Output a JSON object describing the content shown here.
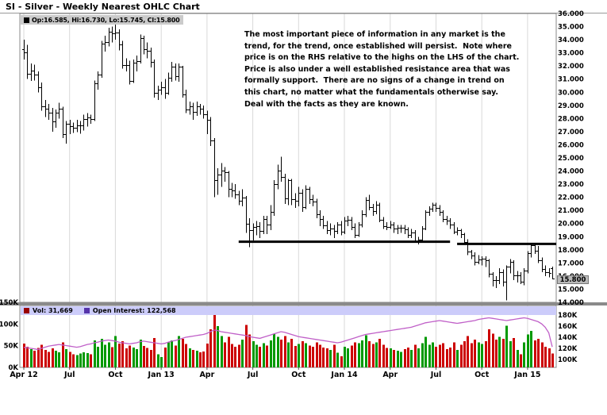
{
  "page": {
    "title": "SI - Silver - Weekly Nearest OHLC Chart"
  },
  "legend": {
    "ohlc": "Op:16.585, Hi:16.730, Lo:15.745, Cl:15.800",
    "volume": "Vol: 31,669",
    "open_interest": "Open Interest: 122,568"
  },
  "annotation": {
    "text": "The most important piece of information in any market is the\ntrend, for the trend, once established will persist.  Note where\nprice is on the RHS relative to the highs on the LHS of the chart.\nPrice is also under a well established resistance area that was\nformally support.  There are no signs of a change in trend on\nthis chart, no matter what the fundamentals otherwise say.\nDeal with the facts as they are known."
  },
  "colors": {
    "ohlc": "#000000",
    "volume_up": "#009900",
    "volume_down": "#cc0000",
    "vol_swatch": "#990000",
    "oi_swatch": "#5533aa",
    "oi_line": "#c060c8",
    "grid": "#d9d9d9",
    "frame": "#888888",
    "separator": "#8a8a8a",
    "legend_bg_top": "#cbcbcb",
    "legend_bg_vol": "#ccccfa",
    "last_price_bg": "#b9b9b9"
  },
  "chart_data": {
    "type": "ohlc+volume",
    "title": "SI - Silver - Weekly Nearest OHLC Chart",
    "timeframe": "weekly",
    "price_pane": {
      "ylim": [
        14,
        36
      ],
      "y_tick_step": 1,
      "y_tick_format": "3dp",
      "last_price": 15.8,
      "last_price_label": "15.800",
      "resistance_lines": [
        {
          "price": 18.62,
          "from_bar": 62,
          "to_bar": 122
        },
        {
          "price": 18.45,
          "from_bar": 124,
          "to_bar": 999
        }
      ]
    },
    "volume_pane": {
      "vol_ylim": [
        0,
        150
      ],
      "vol_ticks": [
        {
          "label": "150K",
          "value": 150
        },
        {
          "label": "100K",
          "value": 100
        },
        {
          "label": "50K",
          "value": 50
        },
        {
          "label": "0K",
          "value": 0
        }
      ],
      "oi_ylim": [
        100,
        180
      ],
      "oi_ticks": [
        {
          "label": "180K",
          "value": 180
        },
        {
          "label": "160K",
          "value": 160
        },
        {
          "label": "140K",
          "value": 140
        },
        {
          "label": "120K",
          "value": 120
        },
        {
          "label": "100K",
          "value": 100
        }
      ],
      "last_volume": 31.669,
      "last_open_interest": 122.568
    },
    "x_ticks": [
      {
        "label": "Apr 12",
        "bar": 1
      },
      {
        "label": "Jul",
        "bar": 14
      },
      {
        "label": "Oct",
        "bar": 27
      },
      {
        "label": "Jan 13",
        "bar": 40
      },
      {
        "label": "Apr",
        "bar": 53
      },
      {
        "label": "Jul",
        "bar": 66
      },
      {
        "label": "Oct",
        "bar": 79
      },
      {
        "label": "Jan 14",
        "bar": 92
      },
      {
        "label": "Apr",
        "bar": 105
      },
      {
        "label": "Jul",
        "bar": 118
      },
      {
        "label": "Oct",
        "bar": 131
      },
      {
        "label": "Jan 15",
        "bar": 144
      }
    ],
    "bars": [
      [
        33.3,
        34.0,
        32.5,
        33.05
      ],
      [
        33.05,
        33.6,
        31.0,
        31.39
      ],
      [
        31.39,
        32.2,
        30.85,
        31.65
      ],
      [
        31.65,
        32.1,
        30.9,
        31.35
      ],
      [
        31.35,
        31.6,
        30.0,
        30.4
      ],
      [
        30.4,
        30.75,
        28.6,
        28.9
      ],
      [
        28.9,
        29.4,
        28.1,
        28.72
      ],
      [
        28.72,
        29.1,
        27.9,
        28.45
      ],
      [
        28.45,
        28.8,
        27.0,
        27.76
      ],
      [
        27.76,
        28.7,
        27.3,
        28.47
      ],
      [
        28.47,
        29.2,
        28.0,
        28.73
      ],
      [
        28.73,
        28.9,
        26.5,
        26.84
      ],
      [
        26.84,
        27.8,
        26.1,
        27.58
      ],
      [
        27.58,
        27.9,
        26.8,
        27.43
      ],
      [
        27.43,
        27.7,
        26.9,
        27.3
      ],
      [
        27.3,
        27.9,
        26.95,
        27.48
      ],
      [
        27.48,
        27.8,
        26.85,
        27.5
      ],
      [
        27.5,
        28.3,
        27.1,
        27.97
      ],
      [
        27.97,
        28.4,
        27.4,
        28.08
      ],
      [
        28.08,
        28.3,
        27.6,
        27.98
      ],
      [
        27.98,
        30.9,
        27.8,
        30.7
      ],
      [
        30.7,
        31.6,
        30.2,
        31.36
      ],
      [
        31.36,
        33.9,
        31.1,
        33.69
      ],
      [
        33.69,
        34.3,
        33.1,
        33.85
      ],
      [
        33.85,
        34.9,
        33.5,
        34.58
      ],
      [
        34.58,
        35.0,
        33.8,
        34.5
      ],
      [
        34.5,
        35.4,
        34.0,
        34.57
      ],
      [
        34.57,
        34.8,
        33.2,
        33.62
      ],
      [
        33.62,
        33.9,
        31.8,
        32.08
      ],
      [
        32.08,
        32.6,
        31.6,
        32.06
      ],
      [
        32.06,
        32.4,
        30.6,
        30.85
      ],
      [
        30.85,
        32.5,
        30.7,
        32.23
      ],
      [
        32.23,
        32.8,
        31.6,
        32.37
      ],
      [
        32.37,
        34.4,
        32.2,
        34.12
      ],
      [
        34.12,
        34.3,
        32.9,
        33.28
      ],
      [
        33.28,
        33.8,
        32.6,
        33.14
      ],
      [
        33.14,
        33.4,
        31.9,
        32.3
      ],
      [
        32.3,
        32.5,
        29.6,
        29.94
      ],
      [
        29.94,
        30.5,
        29.4,
        30.22
      ],
      [
        30.22,
        30.8,
        29.8,
        30.35
      ],
      [
        30.35,
        31.0,
        29.5,
        29.95
      ],
      [
        29.95,
        31.5,
        29.8,
        31.12
      ],
      [
        31.12,
        32.3,
        30.8,
        31.93
      ],
      [
        31.93,
        32.2,
        30.9,
        31.21
      ],
      [
        31.21,
        32.2,
        30.8,
        31.96
      ],
      [
        31.96,
        32.0,
        29.6,
        29.86
      ],
      [
        29.86,
        30.2,
        28.4,
        28.7
      ],
      [
        28.7,
        29.3,
        28.3,
        28.94
      ],
      [
        28.94,
        29.2,
        27.9,
        28.49
      ],
      [
        28.49,
        29.3,
        28.2,
        28.95
      ],
      [
        28.95,
        29.1,
        28.3,
        28.72
      ],
      [
        28.72,
        29.0,
        28.0,
        28.3
      ],
      [
        28.3,
        28.6,
        26.8,
        27.93
      ],
      [
        27.93,
        28.1,
        25.9,
        26.33
      ],
      [
        26.33,
        26.5,
        22.0,
        23.32
      ],
      [
        23.32,
        24.2,
        22.2,
        23.76
      ],
      [
        23.76,
        24.6,
        22.8,
        24.01
      ],
      [
        24.01,
        24.3,
        23.2,
        23.89
      ],
      [
        23.89,
        24.0,
        22.0,
        22.66
      ],
      [
        22.66,
        23.1,
        22.0,
        22.51
      ],
      [
        22.51,
        23.0,
        21.9,
        22.24
      ],
      [
        22.24,
        22.5,
        21.4,
        21.74
      ],
      [
        21.74,
        22.6,
        21.3,
        21.96
      ],
      [
        21.96,
        22.1,
        19.3,
        19.96
      ],
      [
        19.96,
        20.4,
        18.2,
        19.47
      ],
      [
        19.47,
        20.0,
        18.7,
        19.73
      ],
      [
        19.73,
        20.2,
        19.1,
        19.79
      ],
      [
        19.79,
        20.1,
        18.9,
        19.45
      ],
      [
        19.45,
        20.6,
        19.2,
        20.35
      ],
      [
        20.35,
        20.6,
        19.2,
        19.91
      ],
      [
        19.91,
        21.4,
        19.5,
        20.91
      ],
      [
        20.91,
        23.3,
        20.6,
        23.03
      ],
      [
        23.03,
        24.5,
        22.6,
        24.06
      ],
      [
        24.06,
        25.1,
        23.2,
        23.52
      ],
      [
        23.52,
        23.8,
        21.5,
        21.93
      ],
      [
        21.93,
        23.4,
        21.4,
        23.28
      ],
      [
        23.28,
        23.4,
        21.4,
        21.84
      ],
      [
        21.84,
        22.3,
        21.2,
        21.72
      ],
      [
        21.72,
        22.8,
        21.3,
        22.37
      ],
      [
        22.37,
        22.6,
        20.9,
        21.26
      ],
      [
        21.26,
        22.9,
        21.1,
        22.64
      ],
      [
        22.64,
        22.8,
        21.5,
        21.83
      ],
      [
        21.83,
        22.2,
        21.3,
        21.68
      ],
      [
        21.68,
        21.9,
        20.4,
        20.73
      ],
      [
        20.73,
        21.0,
        19.8,
        20.35
      ],
      [
        20.35,
        20.6,
        19.6,
        19.86
      ],
      [
        19.86,
        20.2,
        19.2,
        19.51
      ],
      [
        19.51,
        20.0,
        19.1,
        19.63
      ],
      [
        19.63,
        19.9,
        18.9,
        19.44
      ],
      [
        19.44,
        20.1,
        19.2,
        19.9
      ],
      [
        19.9,
        20.2,
        19.1,
        19.37
      ],
      [
        19.37,
        20.5,
        19.2,
        20.21
      ],
      [
        20.21,
        20.6,
        19.8,
        20.31
      ],
      [
        20.31,
        20.5,
        19.5,
        19.76
      ],
      [
        19.76,
        20.0,
        18.9,
        19.12
      ],
      [
        19.12,
        20.1,
        19.0,
        19.94
      ],
      [
        19.94,
        21.0,
        19.7,
        20.72
      ],
      [
        20.72,
        22.0,
        20.5,
        21.78
      ],
      [
        21.78,
        22.2,
        21.0,
        21.25
      ],
      [
        21.25,
        21.5,
        20.6,
        20.93
      ],
      [
        20.93,
        21.7,
        20.7,
        21.41
      ],
      [
        21.41,
        21.6,
        20.1,
        20.31
      ],
      [
        20.31,
        20.5,
        19.6,
        19.79
      ],
      [
        19.79,
        20.1,
        19.5,
        19.75
      ],
      [
        19.75,
        20.2,
        19.6,
        19.95
      ],
      [
        19.95,
        20.1,
        19.3,
        19.62
      ],
      [
        19.62,
        19.9,
        19.2,
        19.69
      ],
      [
        19.69,
        19.9,
        19.3,
        19.69
      ],
      [
        19.69,
        19.9,
        19.2,
        19.55
      ],
      [
        19.55,
        19.7,
        18.9,
        19.13
      ],
      [
        19.13,
        19.6,
        18.9,
        19.33
      ],
      [
        19.33,
        19.5,
        18.6,
        18.68
      ],
      [
        18.68,
        19.0,
        18.4,
        18.76
      ],
      [
        18.76,
        19.8,
        18.6,
        19.65
      ],
      [
        19.65,
        21.0,
        19.5,
        20.87
      ],
      [
        20.87,
        21.3,
        20.6,
        21.14
      ],
      [
        21.14,
        21.6,
        20.9,
        21.46
      ],
      [
        21.46,
        21.6,
        20.9,
        21.21
      ],
      [
        21.21,
        21.4,
        20.6,
        20.88
      ],
      [
        20.88,
        21.0,
        20.1,
        20.35
      ],
      [
        20.35,
        20.6,
        19.9,
        20.21
      ],
      [
        20.21,
        20.4,
        19.6,
        19.93
      ],
      [
        19.93,
        20.1,
        19.2,
        19.39
      ],
      [
        19.39,
        19.7,
        19.1,
        19.47
      ],
      [
        19.47,
        19.6,
        18.9,
        19.18
      ],
      [
        19.18,
        19.3,
        18.4,
        18.61
      ],
      [
        18.61,
        18.8,
        17.6,
        17.84
      ],
      [
        17.84,
        18.0,
        17.3,
        17.54
      ],
      [
        17.54,
        17.8,
        16.8,
        17.11
      ],
      [
        17.11,
        17.6,
        16.9,
        17.29
      ],
      [
        17.29,
        17.5,
        16.8,
        17.35
      ],
      [
        17.35,
        17.5,
        16.7,
        17.18
      ],
      [
        17.18,
        17.3,
        15.9,
        16.16
      ],
      [
        16.16,
        16.3,
        15.2,
        15.71
      ],
      [
        15.71,
        16.0,
        15.1,
        15.69
      ],
      [
        15.69,
        16.6,
        15.4,
        16.31
      ],
      [
        16.31,
        16.5,
        15.2,
        15.56
      ],
      [
        15.56,
        16.8,
        14.15,
        16.69
      ],
      [
        16.69,
        17.3,
        16.2,
        17.06
      ],
      [
        17.06,
        17.2,
        15.7,
        16.04
      ],
      [
        16.04,
        16.4,
        15.5,
        16.08
      ],
      [
        16.08,
        16.3,
        15.4,
        15.56
      ],
      [
        15.56,
        16.6,
        15.3,
        16.44
      ],
      [
        16.44,
        17.9,
        16.2,
        17.75
      ],
      [
        17.75,
        18.5,
        17.4,
        18.34
      ],
      [
        18.34,
        18.5,
        17.7,
        17.95
      ],
      [
        17.95,
        18.3,
        17.0,
        17.23
      ],
      [
        17.23,
        17.4,
        16.3,
        16.53
      ],
      [
        16.53,
        16.8,
        16.0,
        16.27
      ],
      [
        16.27,
        16.6,
        15.9,
        16.22
      ],
      [
        16.585,
        16.73,
        15.745,
        15.8
      ]
    ],
    "volumes": [
      55,
      48,
      42,
      38,
      45,
      52,
      40,
      36,
      44,
      38,
      35,
      58,
      42,
      36,
      30,
      28,
      32,
      35,
      33,
      30,
      62,
      48,
      66,
      52,
      58,
      47,
      72,
      55,
      60,
      44,
      50,
      46,
      42,
      64,
      49,
      45,
      40,
      68,
      30,
      24,
      46,
      58,
      62,
      50,
      72,
      66,
      54,
      44,
      40,
      38,
      35,
      37,
      55,
      88,
      130,
      95,
      72,
      58,
      70,
      54,
      48,
      52,
      64,
      98,
      76,
      60,
      52,
      48,
      56,
      50,
      62,
      78,
      70,
      64,
      72,
      58,
      66,
      49,
      54,
      60,
      56,
      50,
      48,
      58,
      52,
      46,
      44,
      40,
      52,
      34,
      26,
      48,
      44,
      50,
      58,
      56,
      62,
      74,
      60,
      54,
      58,
      66,
      52,
      45,
      44,
      40,
      38,
      36,
      42,
      46,
      40,
      52,
      44,
      56,
      70,
      52,
      58,
      48,
      52,
      56,
      42,
      46,
      58,
      40,
      52,
      60,
      72,
      56,
      64,
      58,
      54,
      60,
      88,
      78,
      64,
      70,
      66,
      96,
      60,
      68,
      40,
      30,
      58,
      76,
      84,
      62,
      66,
      58,
      48,
      44,
      31.669
    ],
    "open_interest": [
      122,
      121,
      120,
      119,
      118,
      120,
      122,
      124,
      125,
      126,
      127,
      126,
      125,
      124,
      123,
      122,
      123,
      125,
      127,
      128,
      130,
      131,
      133,
      134,
      135,
      134,
      133,
      131,
      130,
      129,
      128,
      129,
      130,
      132,
      133,
      132,
      131,
      130,
      129,
      128,
      129,
      131,
      133,
      134,
      136,
      138,
      140,
      141,
      142,
      143,
      144,
      145,
      147,
      150,
      153,
      152,
      150,
      149,
      148,
      147,
      146,
      145,
      144,
      143,
      141,
      140,
      139,
      138,
      140,
      142,
      144,
      146,
      148,
      150,
      149,
      147,
      145,
      143,
      141,
      140,
      139,
      138,
      137,
      136,
      135,
      134,
      133,
      132,
      131,
      130,
      131,
      133,
      135,
      137,
      139,
      141,
      143,
      145,
      146,
      147,
      148,
      149,
      150,
      151,
      152,
      153,
      154,
      155,
      156,
      157,
      158,
      160,
      162,
      164,
      166,
      167,
      168,
      169,
      170,
      169,
      168,
      167,
      166,
      165,
      166,
      167,
      168,
      169,
      170,
      172,
      173,
      174,
      175,
      174,
      173,
      172,
      171,
      170,
      171,
      172,
      173,
      174,
      175,
      174,
      172,
      170,
      168,
      164,
      158,
      148,
      122.568
    ]
  }
}
